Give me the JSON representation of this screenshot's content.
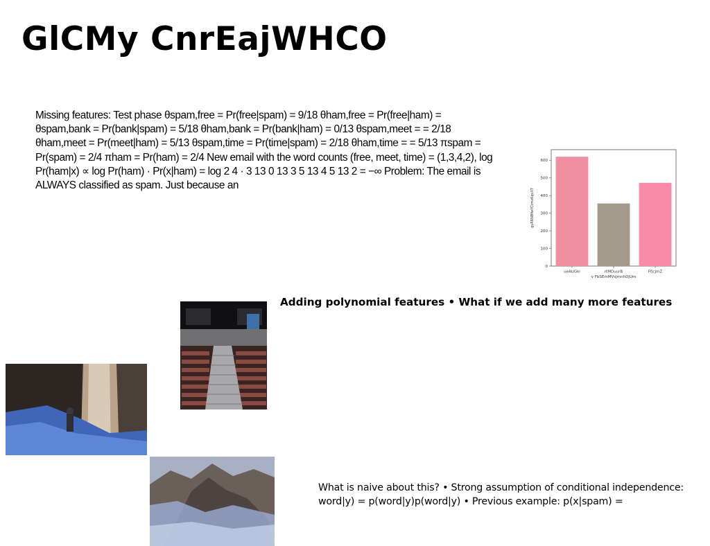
{
  "slide": {
    "title": "GlCMy CnrEajWHCO",
    "body_text": "Missing features: Test phase θspam,free = Pr(free|spam) = 9/18 θham,free = Pr(free|ham) = θspam,bank = Pr(bank|spam) = 5/18 θham,bank = Pr(bank|ham) = 0/13 θspam,meet = = 2/18 θham,meet = Pr(meet|ham) = 5/13 θspam,time = Pr(time|spam) = 2/18 θham,time = = 5/13 πspam = Pr(spam) = 2/4 πham = Pr(ham) = 2/4 New email with the word counts (free, meet, time) = (1,3,4,2), log Pr(ham|x) ∝ log Pr(ham) · Pr(x|ham) = log 2 4 · 3 13 0 13 3 5 13 4 5 13 2 = −∞ Problem: The email is ALWAYS classified as spam. Just because an",
    "heading2": "Adding polynomial features • What if we add many more features",
    "bottom_text": "What is naive about this? • Strong assumption of conditional independence: word|y) = p(word|y)p(word|y) • Previous example: p(x|spam) ="
  },
  "chart_data": {
    "type": "bar",
    "categories": [
      "ueAUGki",
      "rtMDuurB",
      "FfjcjmZ"
    ],
    "values": [
      620,
      355,
      472
    ],
    "colors": [
      "#f28ea1",
      "#a39a8b",
      "#f98aa8"
    ],
    "xlabel": "v FbSEmMVsJmnhDjUm",
    "ylabel": "gvRRNBfwYCtmxKqvXT",
    "ylim": [
      0,
      660
    ],
    "yticks": [
      0,
      100,
      200,
      300,
      400,
      500,
      600
    ],
    "grid": false
  },
  "images": {
    "stadium": "stadium-seats-photo",
    "waterfall": "waterfall-hiker-photo",
    "mountain": "misty-mountain-photo"
  }
}
